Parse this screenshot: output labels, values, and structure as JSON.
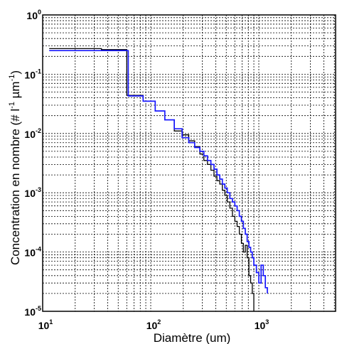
{
  "chart_data": {
    "type": "line",
    "title": "",
    "xlabel": "Diamètre (um)",
    "ylabel": "Concentration en nombre (# l-1 µm-1)",
    "ylabel_parts": {
      "main": "Concentration en nombre (# l",
      "sup1": "-1",
      "mid": " µm",
      "sup2": "-1",
      "end": ")"
    },
    "xscale": "log",
    "yscale": "log",
    "xlim": [
      10,
      5000
    ],
    "ylim": [
      1e-05,
      1
    ],
    "grid": true,
    "x_ticks": [
      {
        "value": 10,
        "base": "10",
        "exp": "1"
      },
      {
        "value": 100,
        "base": "10",
        "exp": "2"
      },
      {
        "value": 1000,
        "base": "10",
        "exp": "3"
      }
    ],
    "y_ticks": [
      {
        "value": 1e-05,
        "base": "10",
        "exp": "-5"
      },
      {
        "value": 0.0001,
        "base": "10",
        "exp": "-4"
      },
      {
        "value": 0.001,
        "base": "10",
        "exp": "-3"
      },
      {
        "value": 0.01,
        "base": "10",
        "exp": "-2"
      },
      {
        "value": 0.1,
        "base": "10",
        "exp": "-1"
      },
      {
        "value": 1,
        "base": "10",
        "exp": "0"
      }
    ],
    "series": [
      {
        "color": "#000000",
        "style": "step",
        "x": [
          11.5,
          35,
          60,
          60,
          85,
          110,
          135,
          165,
          195,
          225,
          255,
          285,
          310,
          335,
          360,
          385,
          410,
          435,
          460,
          485,
          510,
          540,
          570,
          600,
          630,
          660,
          690,
          720,
          750,
          780,
          810,
          840,
          870,
          900
        ],
        "y": [
          0.27,
          0.26,
          0.26,
          0.044,
          0.035,
          0.024,
          0.017,
          0.011,
          0.0095,
          0.0075,
          0.006,
          0.0045,
          0.0035,
          0.003,
          0.0024,
          0.0019,
          0.0016,
          0.0014,
          0.0011,
          0.0009,
          0.0007,
          0.00055,
          0.0004,
          0.00033,
          0.00027,
          0.0002,
          0.00014,
          0.0001,
          0.00013,
          8e-05,
          4e-05,
          3e-05,
          2e-05,
          1e-05
        ]
      },
      {
        "color": "#1a1aff",
        "style": "step",
        "x": [
          11.5,
          35,
          62,
          62,
          85,
          110,
          135,
          165,
          195,
          225,
          255,
          285,
          310,
          335,
          360,
          385,
          410,
          435,
          460,
          485,
          510,
          540,
          570,
          600,
          630,
          660,
          690,
          720,
          750,
          780,
          810,
          840,
          870,
          900,
          950,
          1000,
          1050,
          1100,
          1150,
          1200
        ],
        "y": [
          0.25,
          0.25,
          0.25,
          0.043,
          0.035,
          0.024,
          0.017,
          0.012,
          0.0085,
          0.007,
          0.0058,
          0.005,
          0.0042,
          0.0035,
          0.003,
          0.0025,
          0.002,
          0.0017,
          0.0014,
          0.0012,
          0.001,
          0.0008,
          0.0007,
          0.0006,
          0.0005,
          0.0004,
          0.00033,
          0.00025,
          0.0002,
          0.00015,
          0.00012,
          0.0001,
          8e-05,
          6e-05,
          4.5e-05,
          3e-05,
          6e-05,
          4e-05,
          2.5e-05,
          2e-05
        ]
      }
    ]
  }
}
